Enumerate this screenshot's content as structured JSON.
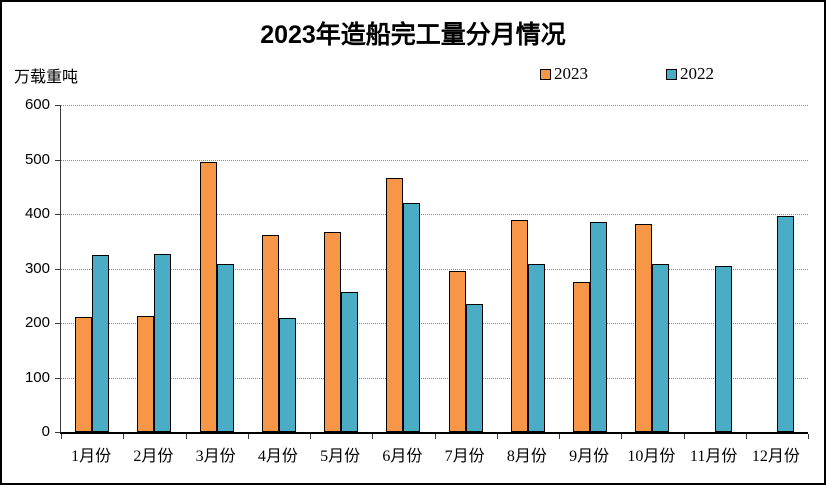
{
  "title": "2023年造船完工量分月情况",
  "y_axis_unit_label": "万载重吨",
  "legend": [
    {
      "label": "2023",
      "color": "#F79646"
    },
    {
      "label": "2022",
      "color": "#4BACC6"
    }
  ],
  "colors": {
    "bar_2023": "#F79646",
    "bar_2022": "#4BACC6",
    "bar_border": "#000000",
    "gridline": "#8c8c8c",
    "axis": "#000000"
  },
  "chart_data": {
    "type": "bar",
    "title": "2023年造船完工量分月情况",
    "xlabel": "",
    "ylabel": "万载重吨",
    "categories": [
      "1月份",
      "2月份",
      "3月份",
      "4月份",
      "5月份",
      "6月份",
      "7月份",
      "8月份",
      "9月份",
      "10月份",
      "11月份",
      "12月份"
    ],
    "series": [
      {
        "name": "2023",
        "color": "#F79646",
        "values": [
          211,
          212,
          495,
          362,
          367,
          466,
          296,
          389,
          276,
          381,
          null,
          null
        ]
      },
      {
        "name": "2022",
        "color": "#4BACC6",
        "values": [
          325,
          327,
          308,
          210,
          257,
          421,
          235,
          309,
          385,
          308,
          304,
          397
        ]
      }
    ],
    "ylim": [
      0,
      600
    ],
    "ytick_step": 100,
    "grid": "horizontal-dotted",
    "legend_position": "top-right"
  }
}
